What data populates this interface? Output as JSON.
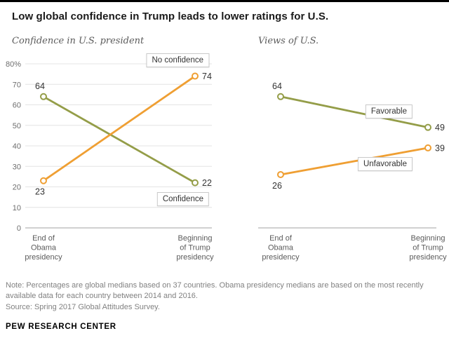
{
  "header": {
    "title": "Low global confidence in Trump leads to lower ratings for U.S."
  },
  "chart_data": [
    {
      "type": "line",
      "title": "Confidence in U.S. president",
      "categories": [
        "End of\nObama\npresidency",
        "Beginning\nof Trump\npresidency"
      ],
      "series": [
        {
          "name": "Confidence",
          "values": [
            64,
            22
          ],
          "color": "#949d48",
          "name_side": "below",
          "start_label_side": "above"
        },
        {
          "name": "No confidence",
          "values": [
            23,
            74
          ],
          "color": "#ef9f33",
          "name_side": "above",
          "start_label_side": "below"
        }
      ],
      "xlabel": "",
      "ylabel": "",
      "ylim": [
        0,
        80
      ],
      "yticks": [
        0,
        10,
        20,
        30,
        40,
        50,
        60,
        70,
        80
      ],
      "ytick_suffix_top": "%",
      "grid": true,
      "legend_position": "inline-boxed-labels"
    },
    {
      "type": "line",
      "title": "Views of U.S.",
      "categories": [
        "End of\nObama\npresidency",
        "Beginning\nof Trump\npresidency"
      ],
      "series": [
        {
          "name": "Favorable",
          "values": [
            64,
            49
          ],
          "color": "#949d48",
          "name_side": "above",
          "start_label_side": "above"
        },
        {
          "name": "Unfavorable",
          "values": [
            26,
            39
          ],
          "color": "#ef9f33",
          "name_side": "below",
          "start_label_side": "below"
        }
      ],
      "xlabel": "",
      "ylabel": "",
      "ylim": [
        0,
        80
      ],
      "grid": false,
      "legend_position": "inline-boxed-labels"
    }
  ],
  "footer": {
    "note": "Note: Percentages are global medians based on 37 countries. Obama presidency medians are based on the most recently available data for each country between 2014 and 2016.",
    "source": "Source: Spring 2017 Global Attitudes Survey.",
    "brand": "PEW RESEARCH CENTER"
  },
  "colors": {
    "green_series": "#949d48",
    "orange_series": "#ef9f33",
    "gridline": "#e4e4e4",
    "axis_line": "#a0a0a0",
    "text_gray": "#5b5b5b"
  }
}
